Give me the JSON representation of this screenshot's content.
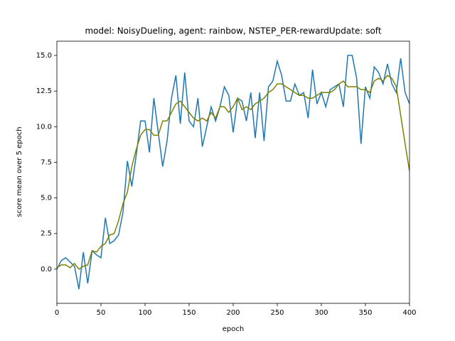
{
  "chart_data": {
    "type": "line",
    "title": "model: NoisyDueling, agent: rainbow, NSTEP_PER-rewardUpdate: soft",
    "x_label": "epoch",
    "y_label": "score mean over 5 epoch",
    "x": [
      0,
      5,
      10,
      15,
      20,
      25,
      30,
      35,
      40,
      45,
      50,
      55,
      60,
      65,
      70,
      75,
      80,
      85,
      90,
      95,
      100,
      105,
      110,
      115,
      120,
      125,
      130,
      135,
      140,
      145,
      150,
      155,
      160,
      165,
      170,
      175,
      180,
      185,
      190,
      195,
      200,
      205,
      210,
      215,
      220,
      225,
      230,
      235,
      240,
      245,
      250,
      255,
      260,
      265,
      270,
      275,
      280,
      285,
      290,
      295,
      300,
      305,
      310,
      315,
      320,
      325,
      330,
      335,
      340,
      345,
      350,
      355,
      360,
      365,
      370,
      375,
      380,
      385,
      390,
      395,
      400
    ],
    "series": [
      {
        "color": "#1f77b4",
        "values": [
          0.0,
          0.6,
          0.8,
          0.5,
          0.2,
          -1.4,
          1.2,
          -1.0,
          1.3,
          1.0,
          0.8,
          3.6,
          1.8,
          2.0,
          2.4,
          4.0,
          7.6,
          5.8,
          8.0,
          10.4,
          10.4,
          8.2,
          12.0,
          9.6,
          7.2,
          9.0,
          12.0,
          13.6,
          10.2,
          13.8,
          10.4,
          10.0,
          12.0,
          8.6,
          10.0,
          11.4,
          10.4,
          11.4,
          12.8,
          12.2,
          9.6,
          12.0,
          11.8,
          10.4,
          12.4,
          9.2,
          12.4,
          9.0,
          12.8,
          13.2,
          14.6,
          13.6,
          11.8,
          11.8,
          13.0,
          12.2,
          12.4,
          10.6,
          14.0,
          11.6,
          12.4,
          11.4,
          12.6,
          12.8,
          13.0,
          11.4,
          15.0,
          15.0,
          13.4,
          8.8,
          12.8,
          12.0,
          14.2,
          13.8,
          13.0,
          14.4,
          13.0,
          12.4,
          14.8,
          12.4,
          11.6
        ]
      },
      {
        "color": "#808000",
        "values": [
          0.1,
          0.3,
          0.3,
          0.1,
          0.4,
          0.0,
          0.2,
          0.3,
          1.3,
          1.2,
          1.6,
          1.8,
          2.4,
          2.5,
          3.4,
          4.6,
          5.4,
          7.2,
          8.4,
          9.4,
          9.8,
          9.8,
          9.4,
          9.4,
          10.4,
          10.4,
          11.0,
          11.6,
          11.8,
          11.4,
          11.0,
          10.6,
          10.4,
          10.6,
          10.4,
          11.0,
          10.6,
          11.4,
          11.4,
          11.0,
          11.4,
          12.0,
          11.2,
          11.4,
          11.2,
          11.6,
          11.8,
          12.0,
          12.4,
          12.6,
          13.0,
          13.0,
          12.8,
          12.6,
          12.4,
          12.2,
          12.2,
          12.0,
          12.0,
          12.2,
          12.4,
          12.4,
          12.4,
          12.6,
          13.0,
          13.2,
          12.8,
          12.8,
          12.8,
          12.6,
          12.6,
          12.4,
          13.2,
          13.4,
          13.2,
          13.6,
          13.4,
          12.8,
          10.8,
          8.8,
          6.9
        ]
      }
    ],
    "xlim": [
      0,
      400
    ],
    "xticks": [
      0,
      50,
      100,
      150,
      200,
      250,
      300,
      350,
      400
    ],
    "ylim": [
      -2.4,
      16.0
    ],
    "yticks": [
      {
        "value": 0,
        "label": "0.0"
      },
      {
        "value": 2.5,
        "label": "2.5"
      },
      {
        "value": 5,
        "label": "5.0"
      },
      {
        "value": 7.5,
        "label": "7.5"
      },
      {
        "value": 10,
        "label": "10.0"
      },
      {
        "value": 12.5,
        "label": "12.5"
      },
      {
        "value": 15,
        "label": "15.0"
      }
    ]
  }
}
